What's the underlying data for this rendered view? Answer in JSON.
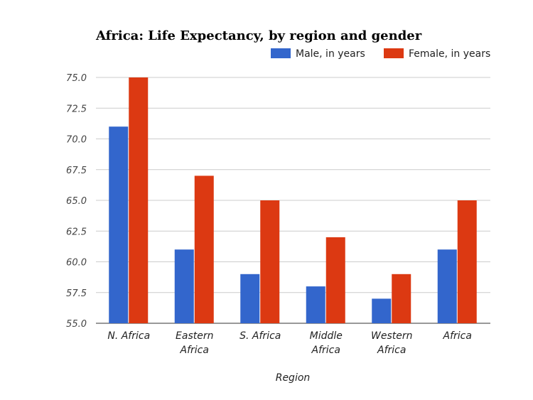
{
  "chart_data": {
    "type": "bar",
    "title": "Africa: Life Expectancy, by region and gender",
    "xlabel": "Region",
    "ylabel": "",
    "categories": [
      [
        "N. Africa"
      ],
      [
        "Eastern",
        "Africa"
      ],
      [
        "S. Africa"
      ],
      [
        "Middle",
        "Africa"
      ],
      [
        "Western",
        "Africa"
      ],
      [
        "Africa"
      ]
    ],
    "series": [
      {
        "name": "Male, in years",
        "color": "#3366cc",
        "values": [
          71,
          61,
          59,
          58,
          57,
          61
        ]
      },
      {
        "name": "Female, in years",
        "color": "#dc3912",
        "values": [
          75,
          67,
          65,
          62,
          59,
          65
        ]
      }
    ],
    "ylim": [
      55,
      75
    ],
    "yticks": [
      "55.0",
      "57.5",
      "60.0",
      "62.5",
      "65.0",
      "67.5",
      "70.0",
      "72.5",
      "75.0"
    ],
    "grid": true,
    "legend_position": "top-right"
  }
}
